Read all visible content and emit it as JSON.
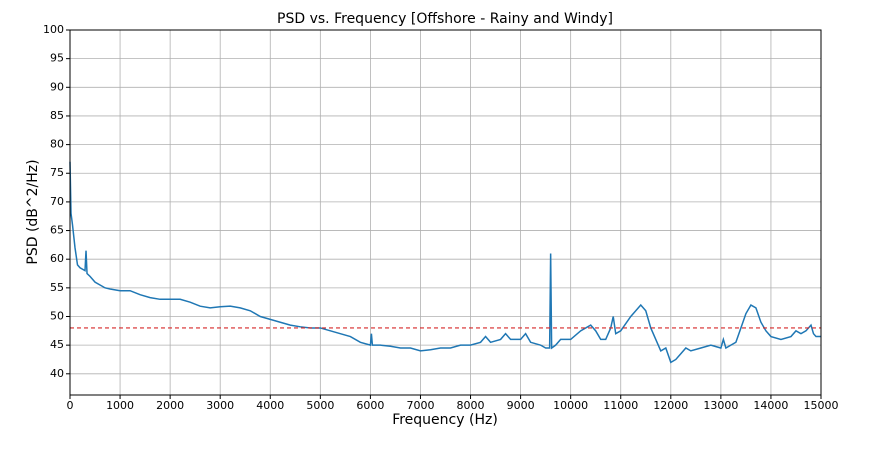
{
  "chart_data": {
    "type": "line",
    "title": "PSD vs. Frequency [Offshore - Rainy and Windy]",
    "x_label": "Frequency (Hz)",
    "y_label": "PSD (dB^2/Hz)",
    "x": [
      0,
      20,
      50,
      100,
      150,
      200,
      300,
      320,
      340,
      400,
      500,
      600,
      700,
      800,
      1000,
      1200,
      1400,
      1600,
      1800,
      2000,
      2200,
      2400,
      2600,
      2800,
      3000,
      3200,
      3400,
      3600,
      3800,
      4000,
      4200,
      4400,
      4600,
      4800,
      5000,
      5200,
      5400,
      5600,
      5800,
      6000,
      6020,
      6040,
      6200,
      6400,
      6600,
      6800,
      7000,
      7200,
      7400,
      7600,
      7800,
      8000,
      8200,
      8300,
      8400,
      8600,
      8700,
      8800,
      9000,
      9100,
      9200,
      9400,
      9500,
      9580,
      9600,
      9620,
      9700,
      9800,
      10000,
      10200,
      10400,
      10500,
      10600,
      10700,
      10800,
      10850,
      10900,
      11000,
      11200,
      11400,
      11500,
      11600,
      11700,
      11800,
      11900,
      12000,
      12100,
      12200,
      12300,
      12400,
      12600,
      12800,
      13000,
      13050,
      13100,
      13300,
      13400,
      13500,
      13600,
      13700,
      13800,
      13900,
      14000,
      14200,
      14400,
      14500,
      14600,
      14700,
      14800,
      14850,
      14900,
      15000
    ],
    "series": [
      {
        "name": "PSD",
        "color": "#1f77b4",
        "values": [
          77,
          68,
          66,
          62,
          59,
          58.5,
          58,
          61.5,
          57.5,
          57,
          56,
          55.5,
          55,
          54.8,
          54.5,
          54.5,
          53.8,
          53.3,
          53,
          53,
          53,
          52.5,
          51.8,
          51.5,
          51.7,
          51.8,
          51.5,
          51,
          50,
          49.5,
          49,
          48.5,
          48.2,
          48,
          48,
          47.5,
          47,
          46.5,
          45.5,
          45,
          47,
          45,
          45,
          44.8,
          44.5,
          44.5,
          44,
          44.2,
          44.5,
          44.5,
          45,
          45,
          45.5,
          46.5,
          45.5,
          46,
          47,
          46,
          46,
          47,
          45.5,
          45,
          44.5,
          44.5,
          61,
          44.5,
          45,
          46,
          46,
          47.5,
          48.5,
          47.5,
          46,
          46,
          48,
          50,
          47,
          47.5,
          50,
          52,
          51,
          48,
          46,
          44,
          44.5,
          42,
          42.5,
          43.5,
          44.5,
          44,
          44.5,
          45,
          44.5,
          46,
          44.5,
          45.5,
          48,
          50.5,
          52,
          51.5,
          49,
          47.5,
          46.5,
          46,
          46.5,
          47.5,
          47,
          47.5,
          48.5,
          47,
          46.5,
          46.5
        ]
      }
    ],
    "reference_line": {
      "value": 48,
      "color": "#d62728",
      "style": "dashed"
    },
    "xlim": [
      0,
      15000
    ],
    "xticks": [
      0,
      1000,
      2000,
      3000,
      4000,
      5000,
      6000,
      7000,
      8000,
      9000,
      10000,
      11000,
      12000,
      13000,
      14000,
      15000
    ],
    "ylim": [
      36.3,
      100
    ],
    "yticks": [
      40,
      45,
      50,
      55,
      60,
      65,
      70,
      75,
      80,
      85,
      90,
      95,
      100
    ],
    "grid": true
  }
}
